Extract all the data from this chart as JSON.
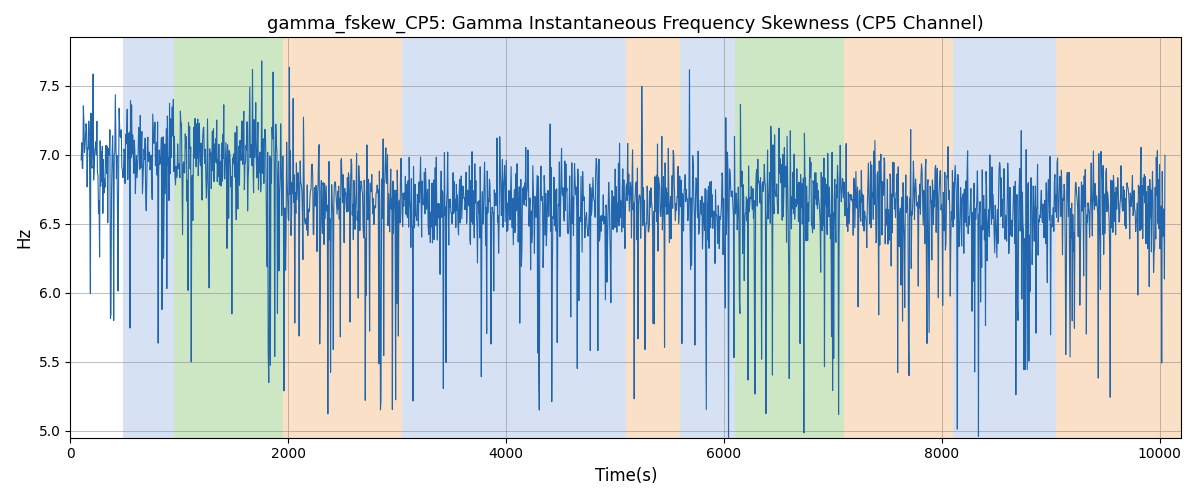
{
  "title": "gamma_fskew_CP5: Gamma Instantaneous Frequency Skewness (CP5 Channel)",
  "xlabel": "Time(s)",
  "ylabel": "Hz",
  "xlim": [
    0,
    10200
  ],
  "ylim": [
    4.95,
    7.85
  ],
  "yticks": [
    5.0,
    5.5,
    6.0,
    6.5,
    7.0,
    7.5
  ],
  "xticks": [
    0,
    2000,
    4000,
    6000,
    8000,
    10000
  ],
  "line_color": "#2166ac",
  "line_width": 0.8,
  "background_color": "white",
  "bands": [
    {
      "xmin": 480,
      "xmax": 950,
      "color": "#aec6e8",
      "alpha": 0.5
    },
    {
      "xmin": 950,
      "xmax": 1950,
      "color": "#90c97a",
      "alpha": 0.45
    },
    {
      "xmin": 1950,
      "xmax": 3050,
      "color": "#f5c89a",
      "alpha": 0.55
    },
    {
      "xmin": 3050,
      "xmax": 3420,
      "color": "#aec6e8",
      "alpha": 0.5
    },
    {
      "xmin": 3420,
      "xmax": 5100,
      "color": "#aec6e8",
      "alpha": 0.5
    },
    {
      "xmin": 5100,
      "xmax": 5600,
      "color": "#f5c89a",
      "alpha": 0.55
    },
    {
      "xmin": 5600,
      "xmax": 6100,
      "color": "#aec6e8",
      "alpha": 0.5
    },
    {
      "xmin": 6100,
      "xmax": 7100,
      "color": "#90c97a",
      "alpha": 0.45
    },
    {
      "xmin": 7100,
      "xmax": 7550,
      "color": "#f5c89a",
      "alpha": 0.55
    },
    {
      "xmin": 7550,
      "xmax": 8100,
      "color": "#f5c89a",
      "alpha": 0.55
    },
    {
      "xmin": 8100,
      "xmax": 9050,
      "color": "#aec6e8",
      "alpha": 0.5
    },
    {
      "xmin": 9050,
      "xmax": 10200,
      "color": "#f5c89a",
      "alpha": 0.55
    }
  ]
}
